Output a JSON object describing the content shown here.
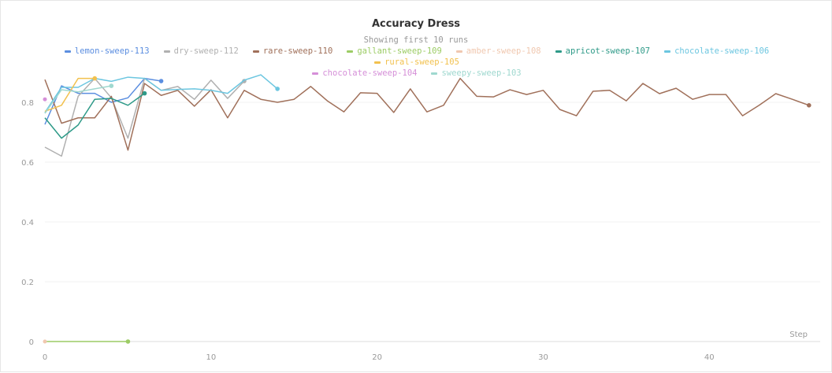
{
  "chart_data": {
    "type": "line",
    "title": "Accuracy Dress",
    "subtitle": "Showing first 10 runs",
    "xlabel": "Step",
    "ylabel": "",
    "xlim": [
      0,
      46.2
    ],
    "ylim": [
      0,
      0.92
    ],
    "xticks": [
      0,
      10,
      20,
      30,
      40
    ],
    "yticks": [
      0,
      0.2,
      0.4,
      0.6,
      0.8
    ],
    "grid": true,
    "legend_placement": "top",
    "series": [
      {
        "name": "lemon-sweep-113",
        "color": "#5b8ee0",
        "values": [
          0.726,
          0.855,
          0.83,
          0.83,
          0.8,
          0.815,
          0.88,
          0.871
        ]
      },
      {
        "name": "dry-sweep-112",
        "color": "#b0b0b0",
        "values": [
          0.65,
          0.62,
          0.82,
          0.88,
          0.815,
          0.68,
          0.88,
          0.84,
          0.853,
          0.81,
          0.874,
          0.813,
          0.871
        ]
      },
      {
        "name": "rare-sweep-110",
        "color": "#a0705a",
        "values": [
          0.876,
          0.73,
          0.748,
          0.748,
          0.82,
          0.64,
          0.863,
          0.823,
          0.84,
          0.787,
          0.842,
          0.748,
          0.84,
          0.81,
          0.8,
          0.81,
          0.853,
          0.805,
          0.768,
          0.832,
          0.83,
          0.766,
          0.845,
          0.768,
          0.79,
          0.88,
          0.82,
          0.818,
          0.842,
          0.826,
          0.84,
          0.776,
          0.755,
          0.837,
          0.84,
          0.805,
          0.863,
          0.829,
          0.847,
          0.81,
          0.826,
          0.826,
          0.755,
          0.79,
          0.829,
          0.81,
          0.79
        ]
      },
      {
        "name": "gallant-sweep-109",
        "color": "#9ccc65",
        "values": [
          0,
          0,
          0,
          0,
          0,
          0
        ]
      },
      {
        "name": "amber-sweep-108",
        "color": "#f0c8b0",
        "values": [
          0
        ]
      },
      {
        "name": "apricot-sweep-107",
        "color": "#2e9a88",
        "values": [
          0.748,
          0.68,
          0.724,
          0.81,
          0.813,
          0.79,
          0.83
        ]
      },
      {
        "name": "chocolate-sweep-106",
        "color": "#6cc6e0",
        "values": [
          0.766,
          0.85,
          0.85,
          0.88,
          0.87,
          0.884,
          0.88,
          0.84,
          0.843,
          0.845,
          0.84,
          0.83,
          0.874,
          0.892,
          0.845
        ]
      },
      {
        "name": "rural-sweep-105",
        "color": "#f2c14e",
        "values": [
          0.77,
          0.79,
          0.88,
          0.88
        ]
      },
      {
        "name": "chocolate-sweep-104",
        "color": "#d58fd8",
        "values": [
          0.81
        ]
      },
      {
        "name": "sweepy-sweep-103",
        "color": "#9fd8cf",
        "values": [
          0.763,
          0.842,
          0.835,
          0.845,
          0.855
        ]
      }
    ]
  }
}
